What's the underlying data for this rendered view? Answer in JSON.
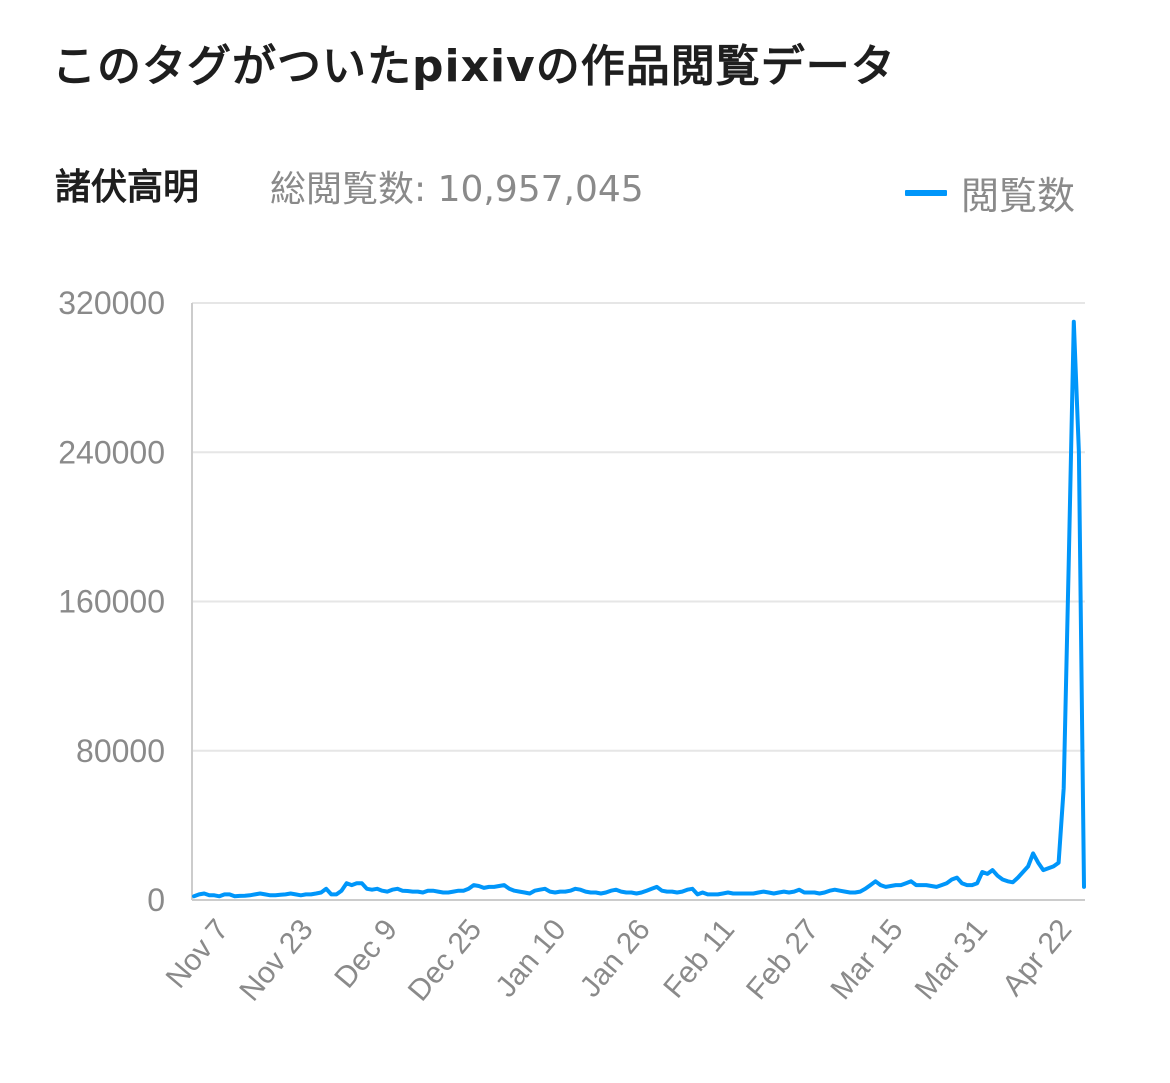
{
  "header": {
    "title": "このタグがついたpixivの作品閲覧データ",
    "tag_name": "諸伏高明",
    "total_views": "総閲覧数: 10,957,045"
  },
  "colors": {
    "series": "#0096fa",
    "grid": "#e6e6e6",
    "axis": "#cccccc",
    "text": "#8a8a8a"
  },
  "chart_data": {
    "type": "line",
    "legend_position": "top-right",
    "grid": true,
    "ylim": [
      0,
      320000
    ],
    "yticks": [
      "320000",
      "240000",
      "160000",
      "80000",
      "0"
    ],
    "xticks": [
      "Nov 7",
      "Nov 23",
      "Dec 9",
      "Dec 25",
      "Jan 10",
      "Jan 26",
      "Feb 11",
      "Feb 27",
      "Mar 15",
      "Mar 31",
      "Apr 22"
    ],
    "series": [
      {
        "name": "閲覧数",
        "values": [
          2000,
          3000,
          3500,
          2500,
          2500,
          2000,
          3000,
          3000,
          2000,
          2200,
          2300,
          2500,
          3000,
          3500,
          3000,
          2500,
          2500,
          2800,
          3000,
          3500,
          3000,
          2500,
          3000,
          3000,
          3500,
          4000,
          6000,
          3000,
          3000,
          5000,
          9000,
          8000,
          9000,
          9000,
          6000,
          5500,
          6000,
          5000,
          4500,
          5500,
          6000,
          5000,
          4800,
          4500,
          4500,
          4000,
          5000,
          5000,
          4500,
          4000,
          4000,
          4500,
          5000,
          5000,
          6000,
          8000,
          7500,
          6500,
          7000,
          7000,
          7500,
          8000,
          6000,
          5000,
          4500,
          4000,
          3500,
          5000,
          5500,
          6000,
          4500,
          4000,
          4500,
          4500,
          5000,
          6000,
          5500,
          4500,
          4000,
          4000,
          3500,
          4000,
          5000,
          5500,
          4500,
          4000,
          4000,
          3500,
          4000,
          5000,
          6000,
          7000,
          5000,
          4500,
          4500,
          4000,
          4500,
          5500,
          6000,
          3000,
          4000,
          3000,
          3000,
          3000,
          3500,
          4000,
          3500,
          3500,
          3500,
          3500,
          3500,
          4000,
          4500,
          4000,
          3500,
          4000,
          4500,
          4000,
          4500,
          5500,
          4000,
          4000,
          4000,
          3500,
          4000,
          5000,
          5500,
          5000,
          4500,
          4000,
          4000,
          4500,
          6000,
          8000,
          10000,
          8000,
          7000,
          7500,
          8000,
          8000,
          9000,
          10000,
          8000,
          8000,
          8000,
          7500,
          7000,
          8000,
          9000,
          11000,
          12000,
          9000,
          8000,
          8000,
          9000,
          15000,
          14000,
          16000,
          13000,
          11000,
          10000,
          9500,
          12000,
          15000,
          18000,
          25000,
          20000,
          16000,
          17000,
          18000,
          20000,
          60000,
          180000,
          310000,
          240000,
          7000
        ]
      }
    ]
  }
}
